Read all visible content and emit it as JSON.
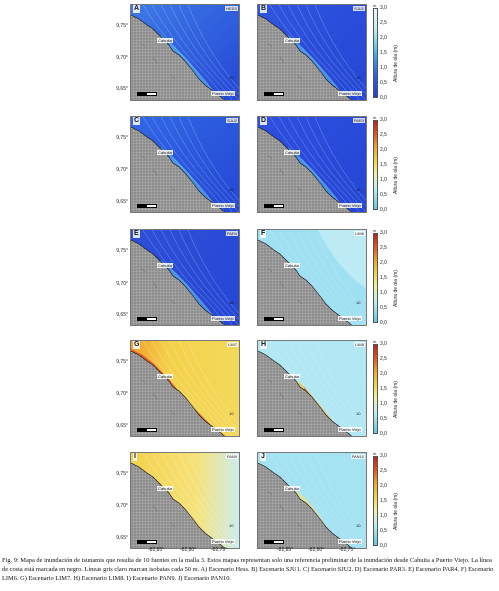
{
  "figure": {
    "latitude_ticks": [
      "9,75°",
      "9,70°",
      "9,65°"
    ],
    "longitude_ticks": [
      "-82,85°",
      "-82,80°",
      "-82,75°"
    ],
    "colorbar": {
      "unit": "m",
      "title": "Altura de ola (m)",
      "ticks": [
        "3,0",
        "2,5",
        "2,0",
        "1,5",
        "1,0",
        "0,5",
        "0,0"
      ]
    },
    "town_labels": {
      "cahuita": "Cahuita",
      "puerto_viejo": "Puerto Viejo"
    },
    "marker_10": "10",
    "scale_text": "0  1  2\nkm",
    "panels": [
      {
        "letter": "A",
        "tag": "HESS",
        "color": "#3d7ae8"
      },
      {
        "letter": "B",
        "tag": "SJU1",
        "color": "#2f55e0"
      },
      {
        "letter": "C",
        "tag": "SJU2",
        "color": "#3168e6"
      },
      {
        "letter": "D",
        "tag": "PAR3",
        "color": "#2e4fe0"
      },
      {
        "letter": "E",
        "tag": "PAR4",
        "color": "#2d4fd8"
      },
      {
        "letter": "F",
        "tag": "LIM6",
        "color": "#8fdcf0"
      },
      {
        "letter": "G",
        "tag": "LIM7",
        "color": "#f3d24b"
      },
      {
        "letter": "H",
        "tag": "LIM8",
        "color": "#b2e8f4"
      },
      {
        "letter": "I",
        "tag": "PAN9",
        "color": "#f4dc5a"
      },
      {
        "letter": "J",
        "tag": "PAN10",
        "color": "#a5e2f2"
      }
    ],
    "caption": "Fig. 9: Mapa de inundación de tsunamis que resulta de 10 fuentes en la malla 3. Estos mapas representan solo una referencia preliminar de la inundación desde Cahuita a Puerto Viejo. La línea de costa está marcada en negro. Líneas gris claro marcan isobatas cada 50 m. A) Escenario Hess. B) Escenario SJU1. C) Escenario SJU2. D) Escenario PAR3. E) Escenario PAR4. F) Escenario LIM6. G) Escenario LIM7. H) Escenario LIM8. I) Escenario PAN9. J) Escenario PAN10."
  }
}
